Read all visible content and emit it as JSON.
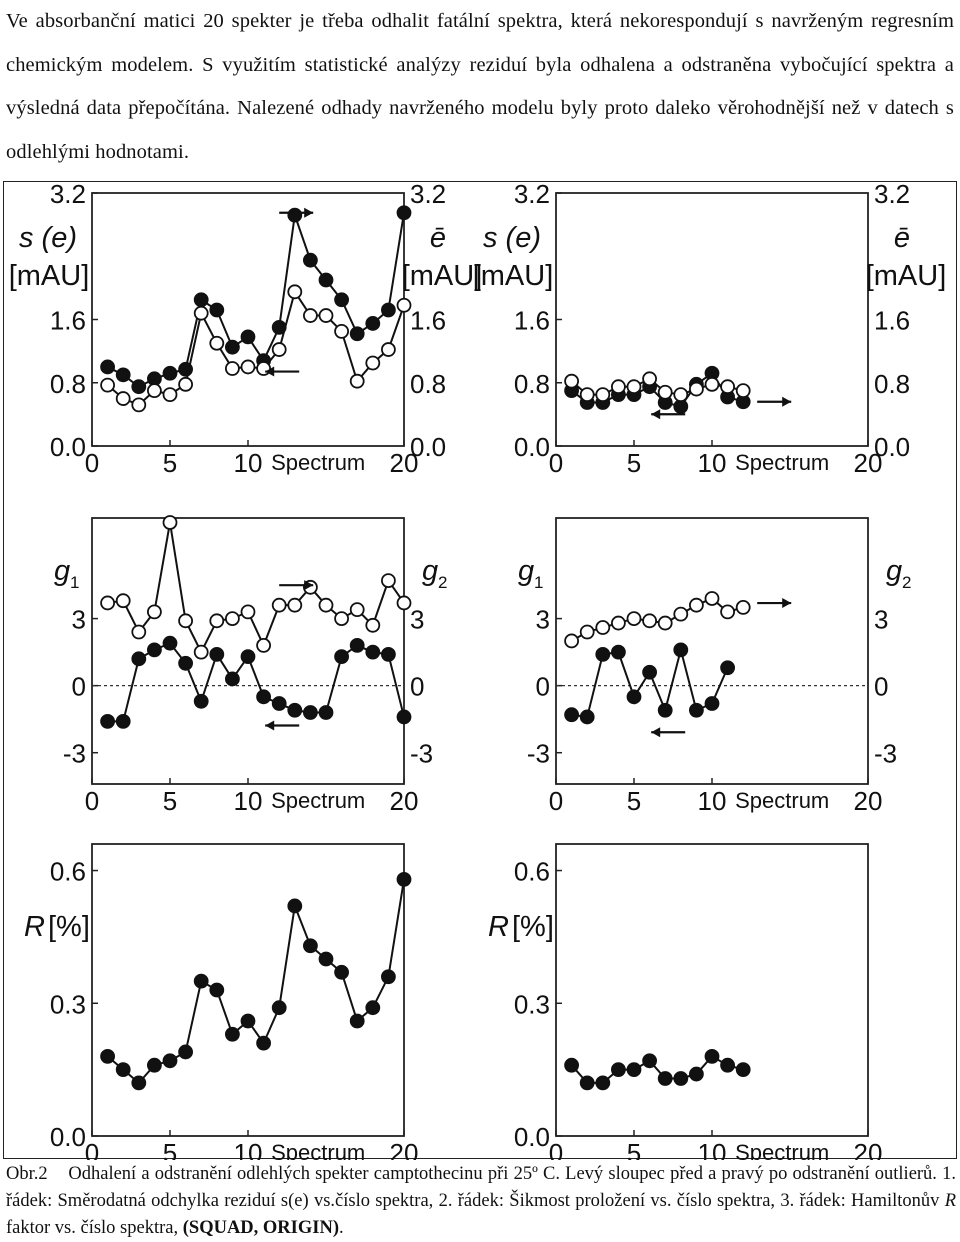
{
  "intro_text": "Ve absorbanční matici 20 spekter je třeba odhalit fatální spektra, která nekorespondují s navrženým regresním chemickým modelem. S využitím statistické analýzy reziduí byla odhalena a odstraněna vybočující spektra a výsledná data přepočítána. Nalezené odhady navrženého modelu byly proto daleko věrohodnější než v datech s odlehlými hodnotami.",
  "caption": {
    "label": "Obr.2",
    "text": "Odhalení a odstranění odlehlých spekter camptothecinu při 25º C. Levý sloupec před a pravý po odstranění outlierů. 1. řádek: Směrodatná odchylka reziduí s(e) vs.číslo spektra, 2. řádek: Šikmost proložení vs. číslo spektra, 3. řádek: Hamiltonův ",
    "italic": "R",
    "text_after": " faktor vs. číslo spektra, ",
    "bold": "(SQUAD, ORIGIN)",
    "end": "."
  },
  "chart_data": [
    {
      "type": "scatter",
      "id": "se-before",
      "xlabel": "Spectrum",
      "ylabel_left": "s (e)",
      "unit_left": "[mAU]",
      "ylabel_right": "ē",
      "unit_right": "[mAU]",
      "xticks": [
        "0",
        "5",
        "10",
        "20"
      ],
      "yticks": [
        "0.0",
        "0.8",
        "1.6",
        "3.2"
      ],
      "xlim": [
        0,
        20
      ],
      "ylim": [
        0,
        3.2
      ],
      "series": [
        {
          "marker": "filled",
          "arrow": "right",
          "x": [
            1,
            2,
            3,
            4,
            5,
            6,
            7,
            8,
            9,
            10,
            11,
            12,
            13,
            14,
            15,
            16,
            17,
            18,
            19,
            20
          ],
          "y": [
            1.0,
            0.9,
            0.75,
            0.85,
            0.92,
            0.97,
            1.85,
            1.72,
            1.25,
            1.38,
            1.08,
            1.5,
            2.92,
            2.35,
            2.1,
            1.85,
            1.42,
            1.55,
            1.72,
            2.95
          ]
        },
        {
          "marker": "open",
          "arrow": "left",
          "x": [
            1,
            2,
            3,
            4,
            5,
            6,
            7,
            8,
            9,
            10,
            11,
            12,
            13,
            14,
            15,
            16,
            17,
            18,
            19,
            20
          ],
          "y": [
            0.77,
            0.6,
            0.52,
            0.7,
            0.65,
            0.78,
            1.68,
            1.3,
            0.98,
            1.0,
            0.98,
            1.22,
            1.95,
            1.65,
            1.65,
            1.45,
            0.82,
            1.05,
            1.22,
            1.78
          ]
        }
      ]
    },
    {
      "type": "scatter",
      "id": "se-after",
      "xlabel": "Spectrum",
      "ylabel_left": "s (e)",
      "unit_left": "[mAU]",
      "ylabel_right": "ē",
      "unit_right": "[mAU]",
      "xticks": [
        "0",
        "5",
        "10",
        "20"
      ],
      "yticks": [
        "0.0",
        "0.8",
        "1.6",
        "3.2"
      ],
      "xlim": [
        0,
        20
      ],
      "ylim": [
        0,
        3.2
      ],
      "series": [
        {
          "marker": "filled",
          "arrow": "right",
          "x": [
            1,
            2,
            3,
            4,
            5,
            6,
            7,
            8,
            9,
            10,
            11,
            12
          ],
          "y": [
            0.7,
            0.55,
            0.55,
            0.65,
            0.65,
            0.75,
            0.55,
            0.5,
            0.78,
            0.92,
            0.62,
            0.56
          ]
        },
        {
          "marker": "open",
          "arrow": "left",
          "x": [
            1,
            2,
            3,
            4,
            5,
            6,
            7,
            8,
            9,
            10,
            11,
            12
          ],
          "y": [
            0.82,
            0.65,
            0.65,
            0.75,
            0.75,
            0.85,
            0.68,
            0.65,
            0.72,
            0.78,
            0.75,
            0.7
          ]
        }
      ]
    },
    {
      "type": "scatter",
      "id": "g-before",
      "xlabel": "Spectrum",
      "ylabel_left": "g",
      "sub_left": "1",
      "ylabel_right": "g",
      "sub_right": "2",
      "xticks": [
        "0",
        "5",
        "10",
        "20"
      ],
      "yticks": [
        "-3",
        "0",
        "3"
      ],
      "xlim": [
        0,
        20
      ],
      "ylim": [
        -4.4,
        7.5
      ],
      "baseline": 0,
      "series": [
        {
          "marker": "filled",
          "arrow": "left",
          "x": [
            1,
            2,
            3,
            4,
            5,
            6,
            7,
            8,
            9,
            10,
            11,
            12,
            13,
            14,
            15,
            16,
            17,
            18,
            19,
            20
          ],
          "y": [
            -1.6,
            -1.6,
            1.2,
            1.6,
            1.9,
            1.0,
            -0.7,
            1.4,
            0.3,
            1.3,
            -0.5,
            -0.8,
            -1.1,
            -1.2,
            -1.2,
            1.3,
            1.8,
            1.5,
            1.4,
            -1.4
          ]
        },
        {
          "marker": "open",
          "arrow": "right",
          "x": [
            1,
            2,
            3,
            4,
            5,
            6,
            7,
            8,
            9,
            10,
            11,
            12,
            13,
            14,
            15,
            16,
            17,
            18,
            19,
            20
          ],
          "y": [
            3.7,
            3.8,
            2.4,
            3.3,
            7.3,
            2.9,
            1.5,
            2.9,
            3.0,
            3.3,
            1.8,
            3.6,
            3.6,
            4.4,
            3.6,
            3.0,
            3.4,
            2.7,
            4.7,
            3.7
          ]
        }
      ]
    },
    {
      "type": "scatter",
      "id": "g-after",
      "xlabel": "Spectrum",
      "ylabel_left": "g",
      "sub_left": "1",
      "ylabel_right": "g",
      "sub_right": "2",
      "xticks": [
        "0",
        "5",
        "10",
        "20"
      ],
      "yticks": [
        "-3",
        "0",
        "3"
      ],
      "xlim": [
        0,
        20
      ],
      "ylim": [
        -4.4,
        7.5
      ],
      "baseline": 0,
      "series": [
        {
          "marker": "filled",
          "arrow": "left",
          "x": [
            1,
            2,
            3,
            4,
            5,
            6,
            7,
            8,
            9,
            10,
            11,
            12
          ],
          "y": [
            -1.3,
            -1.4,
            1.4,
            1.5,
            -0.5,
            0.6,
            -1.1,
            1.6,
            -1.1,
            -0.8,
            0.8,
            null
          ]
        },
        {
          "marker": "open",
          "arrow": "right",
          "x": [
            1,
            2,
            3,
            4,
            5,
            6,
            7,
            8,
            9,
            10,
            11,
            12
          ],
          "y": [
            2.0,
            2.4,
            2.6,
            2.8,
            3.0,
            2.9,
            2.8,
            3.2,
            3.6,
            3.9,
            3.3,
            3.5
          ]
        }
      ]
    },
    {
      "type": "scatter",
      "id": "r-before",
      "xlabel": "Spectrum",
      "ylabel_left": "R",
      "unit_left": "[%]",
      "xticks": [
        "0",
        "5",
        "10",
        "20"
      ],
      "yticks": [
        "0.0",
        "0.3",
        "0.6"
      ],
      "xlim": [
        0,
        20
      ],
      "ylim": [
        0,
        0.66
      ],
      "series": [
        {
          "marker": "filled",
          "x": [
            1,
            2,
            3,
            4,
            5,
            6,
            7,
            8,
            9,
            10,
            11,
            12,
            13,
            14,
            15,
            16,
            17,
            18,
            19,
            20
          ],
          "y": [
            0.18,
            0.15,
            0.12,
            0.16,
            0.17,
            0.19,
            0.35,
            0.33,
            0.23,
            0.26,
            0.21,
            0.29,
            0.52,
            0.43,
            0.4,
            0.37,
            0.26,
            0.29,
            0.36,
            0.58
          ]
        }
      ]
    },
    {
      "type": "scatter",
      "id": "r-after",
      "xlabel": "Spectrum",
      "ylabel_left": "R",
      "unit_left": "[%]",
      "xticks": [
        "0",
        "5",
        "10",
        "20"
      ],
      "yticks": [
        "0.0",
        "0.3",
        "0.6"
      ],
      "xlim": [
        0,
        20
      ],
      "ylim": [
        0,
        0.66
      ],
      "series": [
        {
          "marker": "filled",
          "x": [
            1,
            2,
            3,
            4,
            5,
            6,
            7,
            8,
            9,
            10,
            11,
            12
          ],
          "y": [
            0.16,
            0.12,
            0.12,
            0.15,
            0.15,
            0.17,
            0.13,
            0.13,
            0.14,
            0.18,
            0.16,
            0.15
          ]
        }
      ]
    }
  ]
}
